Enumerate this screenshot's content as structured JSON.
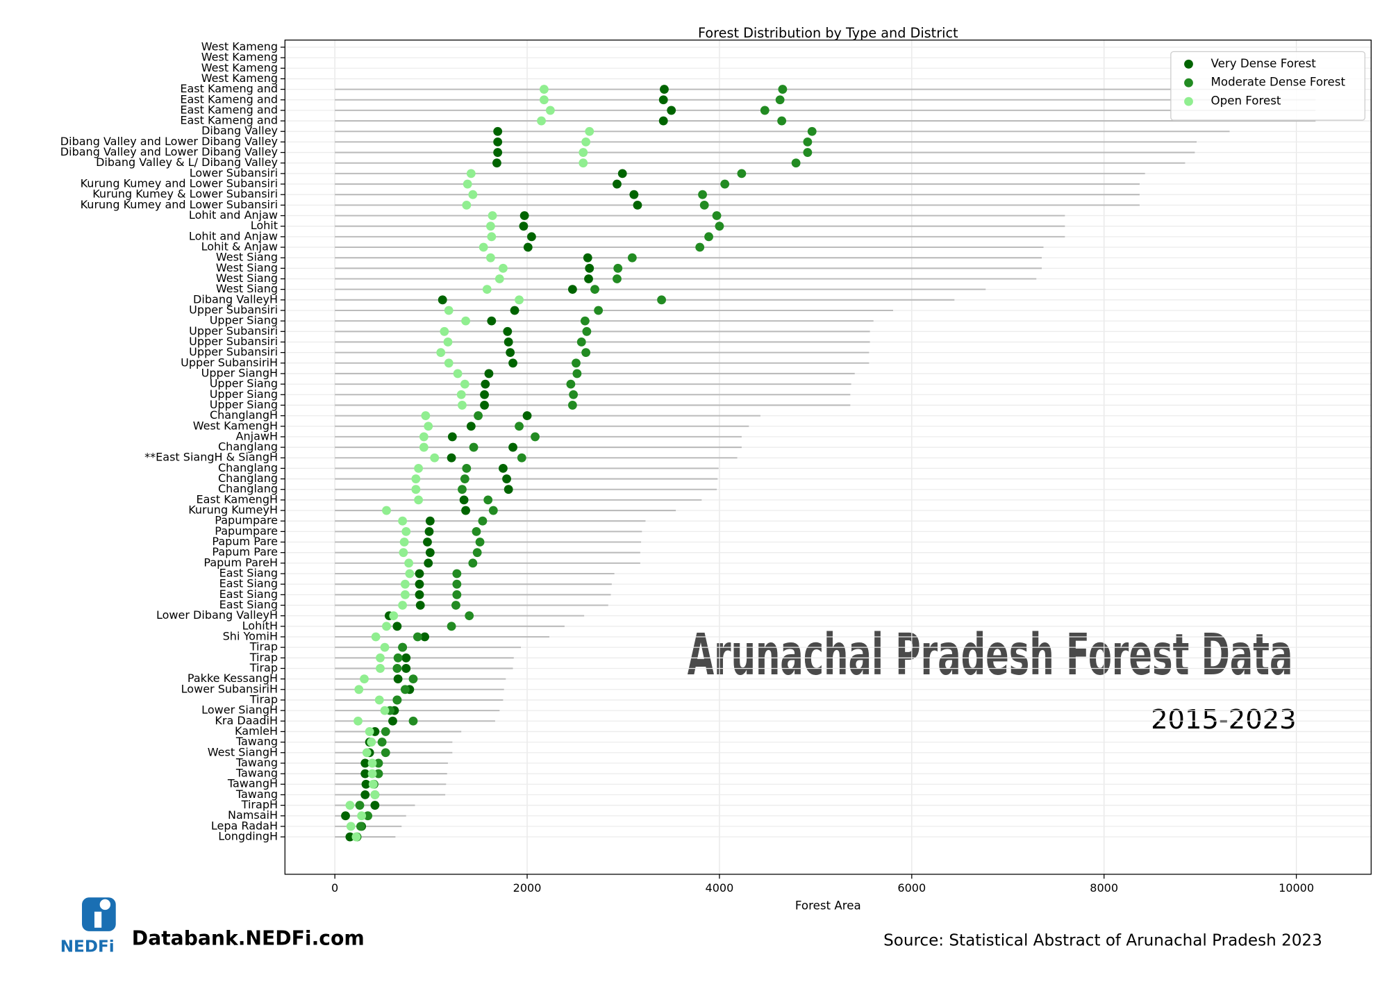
{
  "chart_data": {
    "type": "dot",
    "title": "Forest Distribution by Type and District",
    "xlabel": "Forest Area",
    "categories": [
      "West Kameng",
      "West Kameng",
      "West Kameng",
      "West Kameng",
      "East Kameng and",
      "East Kameng and",
      "East Kameng and",
      "East Kameng and",
      "Dibang Valley",
      "Dibang Valley and Lower Dibang Valley",
      "Dibang Valley and Lower Dibang Valley",
      "Dibang Valley & L/ Dibang Valley",
      "Lower Subansiri",
      "Kurung Kumey and Lower Subansiri",
      "Kurung Kumey & Lower Subansiri",
      "Kurung Kumey and Lower Subansiri",
      "Lohit and Anjaw",
      "Lohit",
      "Lohit and Anjaw",
      "Lohit & Anjaw",
      "West Siang",
      "West Siang",
      "West Siang",
      "West Siang",
      "Dibang ValleyH",
      "Upper Subansiri",
      "Upper Siang",
      "Upper Subansiri",
      "Upper Subansiri",
      "Upper Subansiri",
      "Upper SubansiriH",
      "Upper SiangH",
      "Upper Siang",
      "Upper Siang",
      "Upper Siang",
      "ChanglangH",
      "West KamengH",
      "AnjawH",
      "Changlang",
      "**East SiangH & SiangH",
      "Changlang",
      "Changlang",
      "Changlang",
      "East KamengH",
      "Kurung KumeyH",
      "Papumpare",
      "Papumpare",
      "Papum Pare",
      "Papum Pare",
      "Papum PareH",
      "East Siang",
      "East Siang",
      "East Siang",
      "East Siang",
      "Lower Dibang ValleyH",
      "LohitH",
      "Shi YomiH",
      "Tirap",
      "Tirap",
      "Tirap",
      "Pakke KessangH",
      "Lower SubansiriH",
      "Tirap",
      "Lower SiangH",
      "Kra DaadiH",
      "KamleH",
      "Tawang",
      "West SiangH",
      "Tawang",
      "Tawang",
      "TawangH",
      "Tawang",
      "TirapH",
      "NamsaiH",
      "Lepa RadaH",
      "LongdingH"
    ],
    "series": [
      {
        "name": "Very Dense Forest",
        "color": "#006400",
        "values": [
          null,
          null,
          null,
          null,
          3426,
          3417,
          3500,
          3417,
          1694,
          1694,
          1694,
          1685,
          2991,
          2935,
          3111,
          3148,
          1972,
          1963,
          2046,
          2009,
          2630,
          2648,
          2639,
          2472,
          1120,
          1870,
          1630,
          1796,
          1806,
          1824,
          1852,
          1602,
          1565,
          1556,
          1556,
          2000,
          1417,
          1222,
          1852,
          1213,
          1750,
          1787,
          1806,
          1343,
          1361,
          991,
          981,
          963,
          991,
          972,
          880,
          880,
          880,
          889,
          565,
          648,
          935,
          704,
          741,
          741,
          657,
          778,
          648,
          620,
          602,
          417,
          361,
          361,
          315,
          315,
          324,
          315,
          417,
          111,
          278,
          157
        ]
      },
      {
        "name": "Moderate Dense Forest",
        "color": "#228b22",
        "values": [
          null,
          null,
          null,
          null,
          4657,
          4630,
          4472,
          4648,
          4963,
          4917,
          4917,
          4796,
          4231,
          4056,
          3824,
          3843,
          3972,
          4000,
          3889,
          3796,
          3093,
          2944,
          2935,
          2704,
          3398,
          2741,
          2602,
          2620,
          2565,
          2611,
          2509,
          2519,
          2454,
          2481,
          2472,
          1491,
          1917,
          2083,
          1444,
          1944,
          1370,
          1352,
          1324,
          1593,
          1648,
          1537,
          1472,
          1509,
          1481,
          1435,
          1269,
          1269,
          1269,
          1259,
          1398,
          1213,
          861,
          704,
          657,
          648,
          815,
          731,
          648,
          574,
          815,
          528,
          491,
          528,
          454,
          454,
          407,
          417,
          259,
          343,
          269,
          231
        ]
      },
      {
        "name": "Open Forest",
        "color": "#90ee90",
        "values": [
          null,
          null,
          null,
          null,
          2176,
          2176,
          2241,
          2148,
          2648,
          2611,
          2583,
          2583,
          1417,
          1380,
          1435,
          1370,
          1639,
          1620,
          1630,
          1546,
          1620,
          1750,
          1713,
          1583,
          1917,
          1185,
          1361,
          1139,
          1176,
          1102,
          1185,
          1278,
          1352,
          1315,
          1324,
          944,
          972,
          926,
          926,
          1037,
          870,
          843,
          843,
          870,
          537,
          704,
          741,
          722,
          713,
          769,
          778,
          731,
          731,
          704,
          611,
          537,
          426,
          519,
          472,
          472,
          306,
          250,
          463,
          519,
          241,
          361,
          380,
          333,
          389,
          389,
          398,
          417,
          157,
          278,
          167,
          222
        ]
      }
    ],
    "totals": [
      null,
      null,
      null,
      null,
      10204,
      10200,
      10200,
      10200,
      9306,
      8963,
      8944,
      8843,
      8426,
      8370,
      8370,
      8370,
      7593,
      7593,
      7593,
      7370,
      7352,
      7352,
      7296,
      6769,
      6444,
      5806,
      5602,
      5565,
      5565,
      5556,
      5556,
      5407,
      5370,
      5361,
      5361,
      4426,
      4306,
      4231,
      4231,
      4185,
      3991,
      3981,
      3972,
      3815,
      3546,
      3231,
      3194,
      3185,
      3176,
      3176,
      2907,
      2880,
      2870,
      2843,
      2593,
      2389,
      2231,
      1935,
      1861,
      1852,
      1778,
      1759,
      1750,
      1713,
      1667,
      1315,
      1222,
      1222,
      1176,
      1167,
      1157,
      1148,
      833,
      741,
      694,
      630
    ],
    "totals_color": "#bbbbbb",
    "xlim": [
      -519,
      10778
    ],
    "xticks": [
      0,
      2000,
      4000,
      6000,
      8000,
      10000
    ],
    "grid": true,
    "legend": "upper right"
  },
  "branding": {
    "headline": "Arunachal Pradesh Forest Data",
    "years": "2015-2023",
    "logo": "NEDFi",
    "site": "Databank.NEDFi.com",
    "source": "Source: Statistical Abstract of Arunachal Pradesh 2023"
  }
}
